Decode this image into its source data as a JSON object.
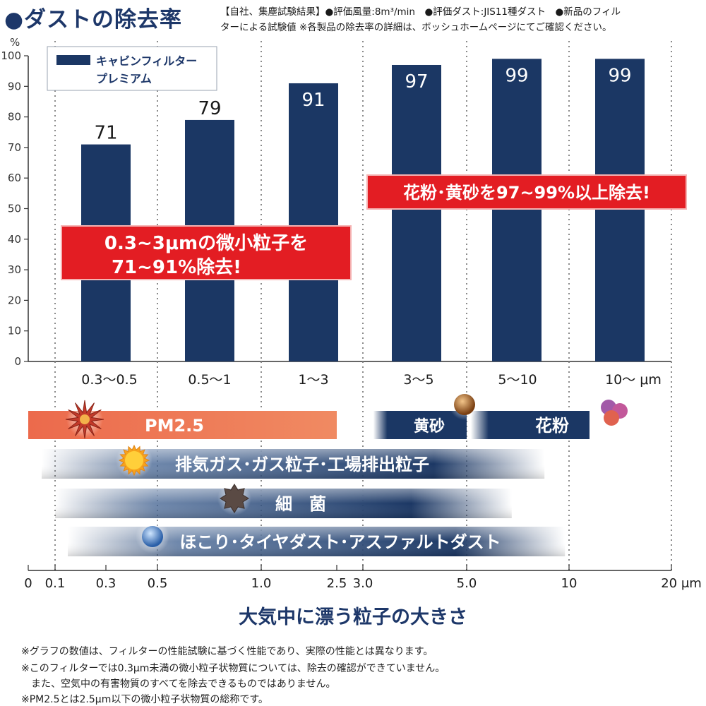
{
  "header": {
    "title": "●ダストの除去率",
    "note_line1": "【自社、集塵試験結果】●評価風量:8m³/min　●評価ダスト:JIS11種ダスト　●新品のフィル",
    "note_line2": "ターによる試験値 ※各製品の除去率の詳細は、ボッシュホームページにてご確認ください。"
  },
  "chart_data": {
    "type": "bar",
    "ylabel": "%",
    "ylim": [
      0,
      100
    ],
    "yticks": [
      "0",
      "10",
      "20",
      "30",
      "40",
      "50",
      "60",
      "70",
      "80",
      "90",
      "100"
    ],
    "categories": [
      "0.3～0.5",
      "0.5～1",
      "1～3",
      "3～5",
      "5～10",
      "10～ μm"
    ],
    "series": [
      {
        "name": "キャビンフィルター\nプレミアム",
        "values": [
          71,
          79,
          91,
          97,
          99,
          99
        ]
      }
    ],
    "value_labels": [
      "71",
      "79",
      "91",
      "97",
      "99",
      "99"
    ],
    "legend_line1": "キャビンフィルター",
    "legend_line2": "プレミアム",
    "legend_position": "top-left",
    "grid": "vertical dotted",
    "bar_color": "#1b3764",
    "callout_left_line1": "0.3~3μmの微小粒子を",
    "callout_left_line2": "71~91%除去!",
    "callout_right": "花粉･黄砂を97~99%以上除去!",
    "callout_color": "#e31d23"
  },
  "particle_chart": {
    "bands": [
      {
        "label": "PM2.5",
        "from": 0,
        "to": 2.5,
        "color": "#ec6a4c",
        "icon": "spiky-particle-icon"
      },
      {
        "label": "黄砂",
        "from": 3.2,
        "to": 5.0,
        "color": "#1b3764",
        "icon": "sand-ball-icon"
      },
      {
        "label": "花粉",
        "from": 5.2,
        "to": 12.0,
        "color": "#1b3764",
        "icon": "pollen-cluster-icon"
      },
      {
        "label": "排気ガス･ガス粒子･工場排出粒子",
        "from": 0.05,
        "to": 8.8,
        "color": "#1b3764",
        "icon": "sun-icon"
      },
      {
        "label": "細　菌",
        "from": 0.1,
        "to": 7.2,
        "color": "#1b3764",
        "icon": "bacteria-icon"
      },
      {
        "label": "ほこり･タイヤダスト･アスファルトダスト",
        "from": 0.15,
        "to": 9.8,
        "color": "#1b3764",
        "icon": "dust-ball-icon"
      }
    ],
    "x_ticks": [
      "0",
      "0.1",
      "0.3",
      "0.5",
      "1.0",
      "2.5",
      "3.0",
      "5.0",
      "10",
      "20 μm"
    ],
    "x_title": "大気中に漂う粒子の大きさ"
  },
  "footnotes": [
    "※グラフの数値は、フィルターの性能試験に基づく性能であり、実際の性能とは異なります。",
    "※このフィルターでは0.3μm未満の微小粒子状物質については、除去の確認ができていません。",
    "　また、空気中の有害物質のすべてを除去できるものではありません。",
    "※PM2.5とは2.5μm以下の微小粒子状物質の総称です。"
  ]
}
